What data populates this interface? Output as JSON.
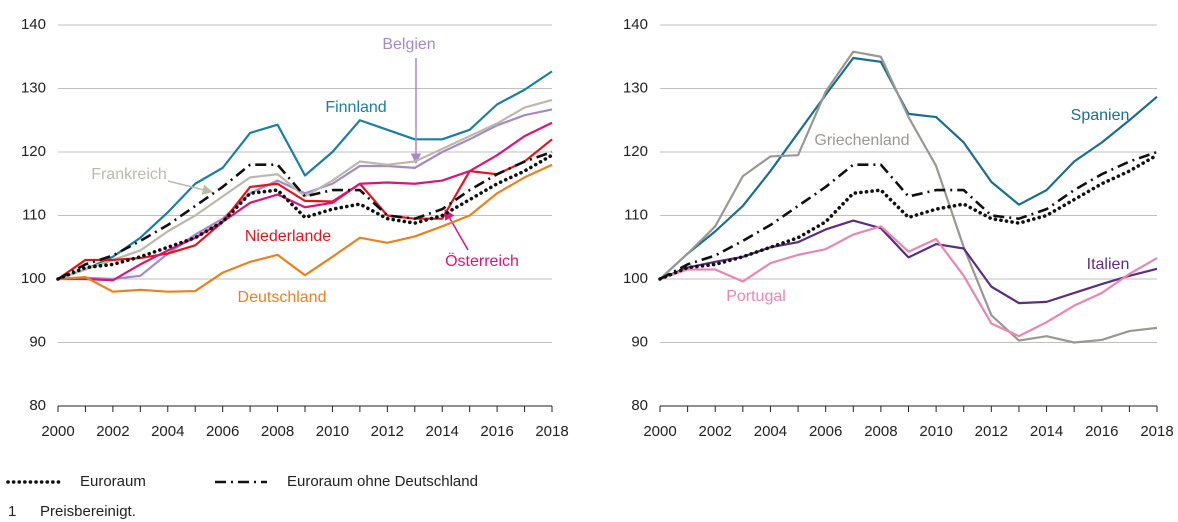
{
  "chart_data": [
    {
      "type": "line",
      "x": [
        2000,
        2001,
        2002,
        2003,
        2004,
        2005,
        2006,
        2007,
        2008,
        2009,
        2010,
        2011,
        2012,
        2013,
        2014,
        2015,
        2016,
        2017,
        2018
      ],
      "xlim": [
        2000,
        2018
      ],
      "xticks": [
        2000,
        2002,
        2004,
        2006,
        2008,
        2010,
        2012,
        2014,
        2016,
        2018
      ],
      "ylim": [
        80,
        140
      ],
      "yticks": [
        80,
        90,
        100,
        110,
        120,
        130,
        140
      ],
      "grid": true,
      "legend": "bottom",
      "series": [
        {
          "name": "Euroraum",
          "color": "#111111",
          "dash": "dotted",
          "values": [
            100,
            101.8,
            102.3,
            103.5,
            105,
            106.5,
            109,
            113.5,
            114,
            109.7,
            111,
            111.8,
            109.5,
            108.8,
            110,
            112.5,
            115,
            117,
            119.5
          ]
        },
        {
          "name": "Euroraum ohne Deutschland",
          "color": "#111111",
          "dash": "dashdot",
          "values": [
            100,
            102.3,
            103.7,
            106,
            108.5,
            111.5,
            114.5,
            118,
            118,
            113,
            114,
            114,
            110,
            109.5,
            111,
            114,
            116.5,
            118.5,
            120
          ]
        },
        {
          "name": "Finnland",
          "color": "#1a7fa0",
          "values": [
            100,
            101.5,
            103.5,
            106.5,
            110.5,
            115,
            117.5,
            123,
            124.3,
            116.3,
            120,
            125,
            123.5,
            122,
            122,
            123.5,
            127.5,
            129.8,
            132.7
          ]
        },
        {
          "name": "Belgien",
          "color": "#a58ac8",
          "values": [
            100,
            100.2,
            100,
            100.5,
            104,
            107,
            109.5,
            113.5,
            115.5,
            113.5,
            115,
            117.8,
            117.8,
            117.5,
            120,
            122,
            124.2,
            125.8,
            126.7
          ]
        },
        {
          "name": "Frankreich",
          "color": "#bdb9aa",
          "values": [
            100,
            101.5,
            103,
            104.5,
            107.5,
            110,
            113,
            116,
            116.5,
            113,
            115.5,
            118.5,
            118,
            118.5,
            120.5,
            122.5,
            124.5,
            127,
            128.2
          ]
        },
        {
          "name": "Niederlande",
          "color": "#e0161e",
          "values": [
            100,
            103,
            103,
            103.3,
            104,
            105.3,
            109,
            114.5,
            115,
            112.3,
            112.2,
            115,
            110,
            109.5,
            109.5,
            117,
            116.5,
            118.5,
            122
          ]
        },
        {
          "name": "Österreich",
          "color": "#d8167a",
          "values": [
            100,
            100,
            99.8,
            102.3,
            104.5,
            106.5,
            109,
            112,
            113.3,
            111.3,
            112,
            115,
            115.2,
            115,
            115.5,
            117,
            119.5,
            122.5,
            124.6
          ]
        },
        {
          "name": "Deutschland",
          "color": "#e8821e",
          "values": [
            100,
            100.3,
            98,
            98.3,
            98,
            98.1,
            101,
            102.7,
            103.8,
            100.6,
            103.5,
            106.5,
            105.7,
            106.7,
            108.3,
            110,
            113.5,
            116,
            118
          ]
        }
      ]
    },
    {
      "type": "line",
      "x": [
        2000,
        2001,
        2002,
        2003,
        2004,
        2005,
        2006,
        2007,
        2008,
        2009,
        2010,
        2011,
        2012,
        2013,
        2014,
        2015,
        2016,
        2017,
        2018
      ],
      "xlim": [
        2000,
        2018
      ],
      "xticks": [
        2000,
        2002,
        2004,
        2006,
        2008,
        2010,
        2012,
        2014,
        2016,
        2018
      ],
      "ylim": [
        80,
        140
      ],
      "yticks": [
        80,
        90,
        100,
        110,
        120,
        130,
        140
      ],
      "grid": true,
      "series": [
        {
          "name": "Euroraum",
          "color": "#111111",
          "dash": "dotted",
          "values": [
            100,
            101.8,
            102.3,
            103.5,
            105,
            106.5,
            109,
            113.5,
            114,
            109.7,
            111,
            111.8,
            109.5,
            108.8,
            110,
            112.5,
            115,
            117,
            119.5
          ]
        },
        {
          "name": "Euroraum ohne Deutschland",
          "color": "#111111",
          "dash": "dashdot",
          "values": [
            100,
            102.3,
            103.7,
            106,
            108.5,
            111.5,
            114.5,
            118,
            118,
            113,
            114,
            114,
            110,
            109.5,
            111,
            114,
            116.5,
            118.5,
            120
          ]
        },
        {
          "name": "Spanien",
          "color": "#1a6e8e",
          "values": [
            100,
            104,
            107.5,
            111.5,
            117,
            123,
            129,
            134.8,
            134.2,
            126,
            125.5,
            121.5,
            115.3,
            111.7,
            114,
            118.5,
            121.5,
            125,
            128.7
          ]
        },
        {
          "name": "Griechenland",
          "color": "#9a9890",
          "values": [
            100,
            104,
            108.3,
            116.2,
            119.3,
            119.5,
            129.5,
            135.8,
            135,
            125.5,
            117.8,
            105,
            94.3,
            90.3,
            91,
            90,
            90.4,
            91.8,
            92.3
          ]
        },
        {
          "name": "Italien",
          "color": "#5c2d82",
          "values": [
            100,
            101.8,
            102.7,
            103.5,
            105,
            105.8,
            107.8,
            109.2,
            108,
            103.4,
            105.5,
            104.8,
            98.8,
            96.2,
            96.4,
            97.8,
            99.2,
            100.5,
            101.6
          ]
        },
        {
          "name": "Portugal",
          "color": "#e886b4",
          "values": [
            100,
            101.5,
            101.5,
            99.6,
            102.5,
            103.8,
            104.7,
            107,
            108.3,
            104.3,
            106.3,
            100.5,
            93,
            91,
            93.2,
            95.8,
            97.8,
            100.8,
            103.3
          ]
        }
      ]
    }
  ],
  "footnote": {
    "marker": "1",
    "text": "Preisbereinigt."
  }
}
